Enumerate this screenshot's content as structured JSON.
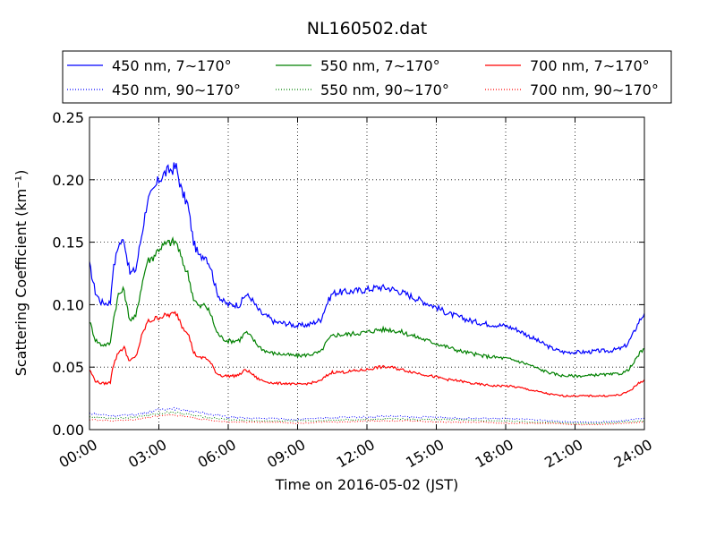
{
  "chart_data": {
    "type": "line",
    "title": "NL160502.dat",
    "xlabel": "Time on 2016-05-02 (JST)",
    "ylabel": "Scattering Coefficient (km⁻¹)",
    "xlim_hours": [
      0,
      24
    ],
    "ylim": [
      0,
      0.25
    ],
    "x_ticks": [
      {
        "hour": 0,
        "label": "00:00"
      },
      {
        "hour": 3,
        "label": "03:00"
      },
      {
        "hour": 6,
        "label": "06:00"
      },
      {
        "hour": 9,
        "label": "09:00"
      },
      {
        "hour": 12,
        "label": "12:00"
      },
      {
        "hour": 15,
        "label": "15:00"
      },
      {
        "hour": 18,
        "label": "18:00"
      },
      {
        "hour": 21,
        "label": "21:00"
      },
      {
        "hour": 24,
        "label": "24:00"
      }
    ],
    "y_ticks": [
      {
        "value": 0.0,
        "label": "0.00"
      },
      {
        "value": 0.05,
        "label": "0.05"
      },
      {
        "value": 0.1,
        "label": "0.10"
      },
      {
        "value": 0.15,
        "label": "0.15"
      },
      {
        "value": 0.2,
        "label": "0.20"
      },
      {
        "value": 0.25,
        "label": "0.25"
      }
    ],
    "grid": true,
    "legend_position": "top",
    "series": [
      {
        "name": "450 nm, 7∼170°",
        "color": "#0000ff",
        "style": "solid",
        "x": [
          0,
          0.25,
          0.5,
          0.75,
          0.9,
          1.0,
          1.25,
          1.5,
          1.6,
          1.75,
          2.0,
          2.25,
          2.5,
          2.75,
          3.0,
          3.25,
          3.5,
          3.75,
          3.9,
          4.0,
          4.25,
          4.5,
          4.75,
          5.0,
          5.25,
          5.5,
          5.75,
          6.0,
          6.25,
          6.5,
          6.75,
          7.0,
          7.25,
          7.5,
          7.75,
          8.0,
          8.5,
          9.0,
          9.5,
          10.0,
          10.25,
          10.5,
          10.75,
          11.0,
          11.5,
          12.0,
          12.5,
          13.0,
          13.5,
          14.0,
          14.5,
          15.0,
          15.5,
          16.0,
          16.5,
          17.0,
          17.5,
          18.0,
          18.5,
          19.0,
          19.5,
          20.0,
          20.5,
          21.0,
          21.5,
          22.0,
          22.5,
          23.0,
          23.25,
          23.5,
          23.75,
          24.0
        ],
        "y": [
          0.132,
          0.11,
          0.102,
          0.101,
          0.102,
          0.125,
          0.148,
          0.152,
          0.14,
          0.125,
          0.128,
          0.155,
          0.183,
          0.19,
          0.2,
          0.205,
          0.208,
          0.21,
          0.198,
          0.19,
          0.18,
          0.15,
          0.138,
          0.14,
          0.13,
          0.11,
          0.103,
          0.1,
          0.1,
          0.1,
          0.108,
          0.105,
          0.097,
          0.092,
          0.09,
          0.086,
          0.085,
          0.083,
          0.084,
          0.088,
          0.1,
          0.109,
          0.11,
          0.11,
          0.111,
          0.112,
          0.114,
          0.113,
          0.11,
          0.106,
          0.102,
          0.098,
          0.093,
          0.09,
          0.087,
          0.085,
          0.084,
          0.083,
          0.08,
          0.075,
          0.07,
          0.065,
          0.062,
          0.062,
          0.062,
          0.063,
          0.063,
          0.065,
          0.068,
          0.076,
          0.086,
          0.093
        ]
      },
      {
        "name": "550 nm, 7∼170°",
        "color": "#008000",
        "style": "solid",
        "x": [
          0,
          0.25,
          0.5,
          0.75,
          0.9,
          1.0,
          1.25,
          1.5,
          1.6,
          1.75,
          2.0,
          2.25,
          2.5,
          2.75,
          3.0,
          3.25,
          3.5,
          3.75,
          3.9,
          4.0,
          4.25,
          4.5,
          4.75,
          5.0,
          5.25,
          5.5,
          5.75,
          6.0,
          6.25,
          6.5,
          6.75,
          7.0,
          7.25,
          7.5,
          7.75,
          8.0,
          8.5,
          9.0,
          9.5,
          10.0,
          10.25,
          10.5,
          10.75,
          11.0,
          11.5,
          12.0,
          12.5,
          13.0,
          13.5,
          14.0,
          14.5,
          15.0,
          15.5,
          16.0,
          16.5,
          17.0,
          17.5,
          18.0,
          18.5,
          19.0,
          19.5,
          20.0,
          20.5,
          21.0,
          21.5,
          22.0,
          22.5,
          23.0,
          23.25,
          23.5,
          23.75,
          24.0
        ],
        "y": [
          0.087,
          0.072,
          0.068,
          0.068,
          0.069,
          0.085,
          0.108,
          0.112,
          0.1,
          0.088,
          0.09,
          0.115,
          0.135,
          0.138,
          0.145,
          0.148,
          0.15,
          0.15,
          0.142,
          0.135,
          0.125,
          0.105,
          0.098,
          0.1,
          0.092,
          0.078,
          0.073,
          0.071,
          0.071,
          0.072,
          0.078,
          0.074,
          0.068,
          0.064,
          0.062,
          0.061,
          0.06,
          0.059,
          0.06,
          0.062,
          0.07,
          0.075,
          0.076,
          0.076,
          0.077,
          0.078,
          0.08,
          0.08,
          0.078,
          0.075,
          0.072,
          0.069,
          0.066,
          0.063,
          0.061,
          0.059,
          0.058,
          0.057,
          0.055,
          0.052,
          0.048,
          0.045,
          0.043,
          0.043,
          0.043,
          0.044,
          0.044,
          0.045,
          0.047,
          0.052,
          0.06,
          0.065
        ]
      },
      {
        "name": "700 nm, 7∼170°",
        "color": "#ff0000",
        "style": "solid",
        "x": [
          0,
          0.25,
          0.5,
          0.75,
          0.9,
          1.0,
          1.25,
          1.5,
          1.6,
          1.75,
          2.0,
          2.25,
          2.5,
          2.75,
          3.0,
          3.25,
          3.5,
          3.75,
          3.9,
          4.0,
          4.25,
          4.5,
          4.75,
          5.0,
          5.25,
          5.5,
          5.75,
          6.0,
          6.25,
          6.5,
          6.75,
          7.0,
          7.25,
          7.5,
          7.75,
          8.0,
          8.5,
          9.0,
          9.5,
          10.0,
          10.25,
          10.5,
          10.75,
          11.0,
          11.5,
          12.0,
          12.5,
          13.0,
          13.5,
          14.0,
          14.5,
          15.0,
          15.5,
          16.0,
          16.5,
          17.0,
          17.5,
          18.0,
          18.5,
          19.0,
          19.5,
          20.0,
          20.5,
          21.0,
          21.5,
          22.0,
          22.5,
          23.0,
          23.25,
          23.5,
          23.75,
          24.0
        ],
        "y": [
          0.048,
          0.039,
          0.037,
          0.037,
          0.038,
          0.05,
          0.062,
          0.066,
          0.06,
          0.055,
          0.058,
          0.074,
          0.086,
          0.088,
          0.09,
          0.091,
          0.092,
          0.093,
          0.088,
          0.083,
          0.078,
          0.062,
          0.057,
          0.058,
          0.053,
          0.045,
          0.043,
          0.043,
          0.043,
          0.044,
          0.048,
          0.045,
          0.041,
          0.039,
          0.038,
          0.037,
          0.037,
          0.036,
          0.037,
          0.039,
          0.043,
          0.046,
          0.046,
          0.046,
          0.047,
          0.048,
          0.05,
          0.05,
          0.048,
          0.046,
          0.044,
          0.042,
          0.04,
          0.039,
          0.037,
          0.036,
          0.035,
          0.035,
          0.034,
          0.032,
          0.03,
          0.028,
          0.027,
          0.027,
          0.027,
          0.027,
          0.027,
          0.028,
          0.03,
          0.033,
          0.037,
          0.04
        ]
      },
      {
        "name": "450 nm, 90∼170°",
        "color": "#0000ff",
        "style": "dotted",
        "x": [
          0,
          1,
          2,
          3,
          3.5,
          4,
          5,
          6,
          7,
          8,
          9,
          10,
          11,
          12,
          13,
          14,
          15,
          16,
          17,
          18,
          19,
          20,
          21,
          22,
          23,
          24
        ],
        "y": [
          0.013,
          0.011,
          0.012,
          0.016,
          0.017,
          0.016,
          0.013,
          0.01,
          0.009,
          0.009,
          0.008,
          0.009,
          0.01,
          0.01,
          0.011,
          0.01,
          0.01,
          0.009,
          0.009,
          0.009,
          0.008,
          0.007,
          0.006,
          0.006,
          0.007,
          0.009
        ]
      },
      {
        "name": "550 nm, 90∼170°",
        "color": "#008000",
        "style": "dotted",
        "x": [
          0,
          1,
          2,
          3,
          3.5,
          4,
          5,
          6,
          7,
          8,
          9,
          10,
          11,
          12,
          13,
          14,
          15,
          16,
          17,
          18,
          19,
          20,
          21,
          22,
          23,
          24
        ],
        "y": [
          0.01,
          0.009,
          0.01,
          0.013,
          0.014,
          0.013,
          0.01,
          0.008,
          0.007,
          0.007,
          0.007,
          0.007,
          0.008,
          0.008,
          0.009,
          0.008,
          0.008,
          0.008,
          0.007,
          0.007,
          0.006,
          0.006,
          0.005,
          0.005,
          0.006,
          0.007
        ]
      },
      {
        "name": "700 nm, 90∼170°",
        "color": "#ff0000",
        "style": "dotted",
        "x": [
          0,
          1,
          2,
          3,
          3.5,
          4,
          5,
          6,
          7,
          8,
          9,
          10,
          11,
          12,
          13,
          14,
          15,
          16,
          17,
          18,
          19,
          20,
          21,
          22,
          23,
          24
        ],
        "y": [
          0.008,
          0.007,
          0.008,
          0.011,
          0.012,
          0.011,
          0.008,
          0.006,
          0.006,
          0.006,
          0.005,
          0.006,
          0.006,
          0.007,
          0.007,
          0.007,
          0.006,
          0.006,
          0.006,
          0.005,
          0.005,
          0.005,
          0.004,
          0.004,
          0.005,
          0.006
        ]
      }
    ]
  }
}
